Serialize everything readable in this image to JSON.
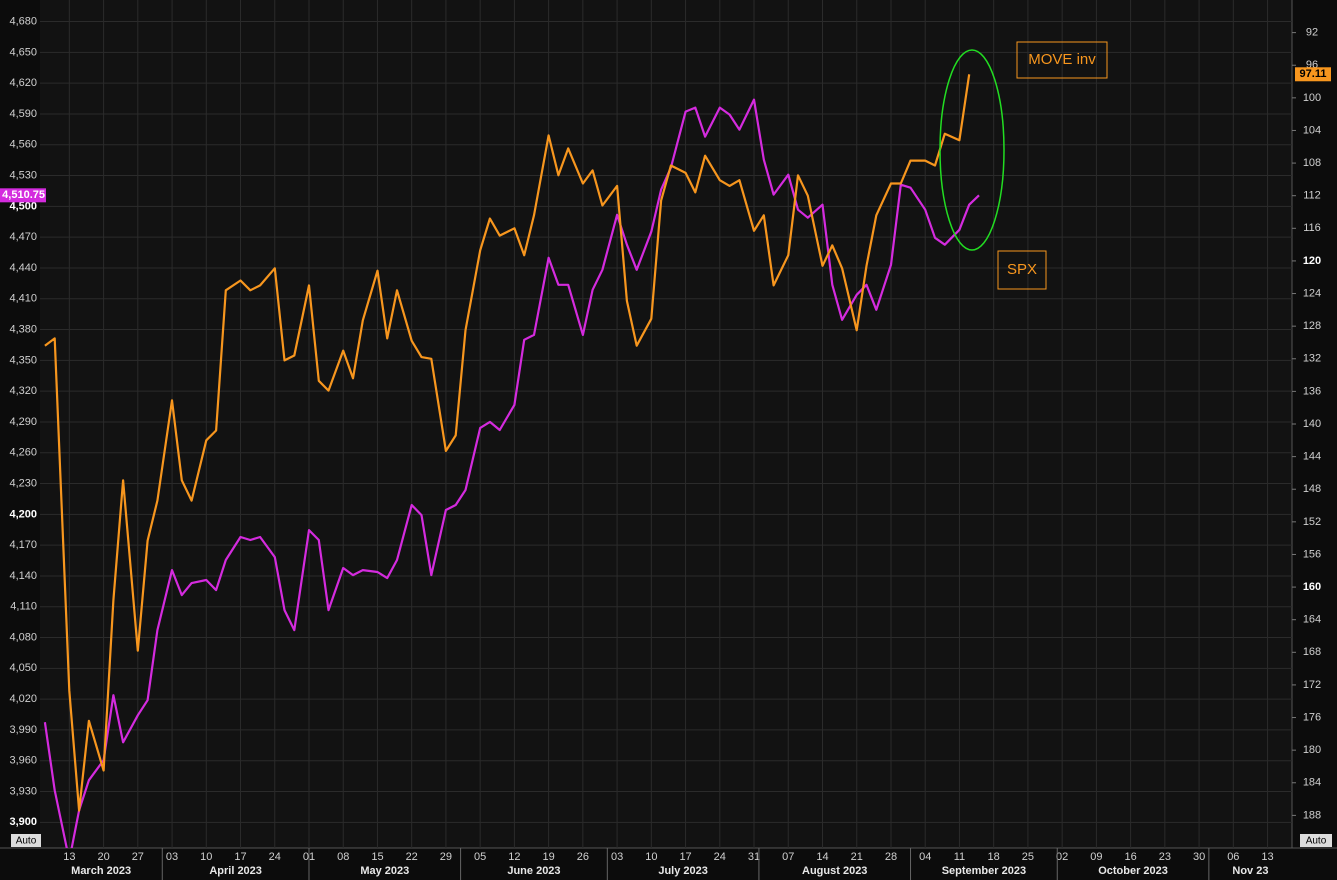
{
  "chart_data": {
    "type": "line",
    "x": [
      "2023-03-08",
      "2023-03-10",
      "2023-03-13",
      "2023-03-15",
      "2023-03-17",
      "2023-03-20",
      "2023-03-22",
      "2023-03-24",
      "2023-03-27",
      "2023-03-29",
      "2023-03-31",
      "2023-04-03",
      "2023-04-05",
      "2023-04-07",
      "2023-04-10",
      "2023-04-12",
      "2023-04-14",
      "2023-04-17",
      "2023-04-19",
      "2023-04-21",
      "2023-04-24",
      "2023-04-26",
      "2023-04-28",
      "2023-05-01",
      "2023-05-03",
      "2023-05-05",
      "2023-05-08",
      "2023-05-10",
      "2023-05-12",
      "2023-05-15",
      "2023-05-17",
      "2023-05-19",
      "2023-05-22",
      "2023-05-24",
      "2023-05-26",
      "2023-05-29",
      "2023-05-31",
      "2023-06-02",
      "2023-06-05",
      "2023-06-07",
      "2023-06-09",
      "2023-06-12",
      "2023-06-14",
      "2023-06-16",
      "2023-06-19",
      "2023-06-21",
      "2023-06-23",
      "2023-06-26",
      "2023-06-28",
      "2023-06-30",
      "2023-07-03",
      "2023-07-05",
      "2023-07-07",
      "2023-07-10",
      "2023-07-12",
      "2023-07-14",
      "2023-07-17",
      "2023-07-19",
      "2023-07-21",
      "2023-07-24",
      "2023-07-26",
      "2023-07-28",
      "2023-07-31",
      "2023-08-02",
      "2023-08-04",
      "2023-08-07",
      "2023-08-09",
      "2023-08-11",
      "2023-08-14",
      "2023-08-16",
      "2023-08-18",
      "2023-08-21",
      "2023-08-23",
      "2023-08-25",
      "2023-08-28",
      "2023-08-30",
      "2023-09-01",
      "2023-09-04",
      "2023-09-06",
      "2023-09-08",
      "2023-09-11",
      "2023-09-13",
      "2023-09-15"
    ],
    "series": [
      {
        "name": "SPX",
        "color": "#d42bde",
        "last_label": "4,510.75",
        "values": [
          3997.5,
          3931.2,
          3863,
          3911.7,
          3941,
          3960.5,
          4023.8,
          3978,
          4004.3,
          4019,
          4087.2,
          4145.7,
          4121.3,
          4133,
          4136,
          4126.2,
          4155.5,
          4177.9,
          4175,
          4177.9,
          4158.4,
          4106.7,
          4087.2,
          4184.7,
          4175,
          4106.7,
          4147.7,
          4140.8,
          4145.7,
          4143.8,
          4137.9,
          4155.5,
          4209.1,
          4199.3,
          4140.8,
          4204.2,
          4209.1,
          4223.7,
          4284.2,
          4290,
          4282.2,
          4306.6,
          4370,
          4374.8,
          4449.9,
          4423.6,
          4423.6,
          4374.8,
          4418.7,
          4438.2,
          4491.8,
          4462.6,
          4438.2,
          4475.3,
          4516.2,
          4537.7,
          4592.3,
          4596.2,
          4567.9,
          4596.2,
          4589.4,
          4574.7,
          4604,
          4545.5,
          4511.4,
          4530.8,
          4496.7,
          4488.9,
          4501.6,
          4423.6,
          4389.5,
          4413.8,
          4423.6,
          4399.2,
          4443.1,
          4521.1,
          4518.2,
          4496.7,
          4469.4,
          4462.6,
          4477.2,
          4501.6,
          4510.75
        ]
      },
      {
        "name": "MOVE inv",
        "color": "#f7961e",
        "axis": "y2",
        "values": [
          130.4,
          129.5,
          172.7,
          187.4,
          176.4,
          182.5,
          161.6,
          146.9,
          167.8,
          154.3,
          149.4,
          137.1,
          146.9,
          149.4,
          142,
          140.8,
          123.6,
          122.4,
          123.6,
          123,
          120.9,
          132.2,
          131.6,
          123,
          134.7,
          135.9,
          131,
          134.4,
          127.3,
          121.2,
          129.5,
          123.6,
          129.8,
          131.8,
          132,
          143.3,
          141.4,
          128.5,
          118.7,
          114.8,
          116.9,
          116,
          119.3,
          114.4,
          104.6,
          109.5,
          106.2,
          110.5,
          108.9,
          113.2,
          110.8,
          124.9,
          130.4,
          127.1,
          112.6,
          108.3,
          109.2,
          111.6,
          107.1,
          110.1,
          110.8,
          110.1,
          116.3,
          114.4,
          123,
          119.3,
          109.5,
          112,
          120.6,
          118.1,
          120.9,
          128.5,
          120.6,
          114.4,
          110.5,
          110.5,
          107.7,
          107.7,
          108.3,
          104.4,
          105.2,
          97.11,
          null
        ]
      }
    ],
    "legend_color": "#f7961e",
    "xlim": [
      "2023-03-07",
      "2023-11-18"
    ],
    "xticks": [
      {
        "value": "2023-03-13",
        "label": "13"
      },
      {
        "value": "2023-03-20",
        "label": "20"
      },
      {
        "value": "2023-03-27",
        "label": "27"
      },
      {
        "value": "2023-04-03",
        "label": "03"
      },
      {
        "value": "2023-04-10",
        "label": "10"
      },
      {
        "value": "2023-04-17",
        "label": "17"
      },
      {
        "value": "2023-04-24",
        "label": "24"
      },
      {
        "value": "2023-05-01",
        "label": "01"
      },
      {
        "value": "2023-05-08",
        "label": "08"
      },
      {
        "value": "2023-05-15",
        "label": "15"
      },
      {
        "value": "2023-05-22",
        "label": "22"
      },
      {
        "value": "2023-05-29",
        "label": "29"
      },
      {
        "value": "2023-06-05",
        "label": "05"
      },
      {
        "value": "2023-06-12",
        "label": "12"
      },
      {
        "value": "2023-06-19",
        "label": "19"
      },
      {
        "value": "2023-06-26",
        "label": "26"
      },
      {
        "value": "2023-07-03",
        "label": "03"
      },
      {
        "value": "2023-07-10",
        "label": "10"
      },
      {
        "value": "2023-07-17",
        "label": "17"
      },
      {
        "value": "2023-07-24",
        "label": "24"
      },
      {
        "value": "2023-07-31",
        "label": "31"
      },
      {
        "value": "2023-08-07",
        "label": "07"
      },
      {
        "value": "2023-08-14",
        "label": "14"
      },
      {
        "value": "2023-08-21",
        "label": "21"
      },
      {
        "value": "2023-08-28",
        "label": "28"
      },
      {
        "value": "2023-09-04",
        "label": "04"
      },
      {
        "value": "2023-09-11",
        "label": "11"
      },
      {
        "value": "2023-09-18",
        "label": "18"
      },
      {
        "value": "2023-09-25",
        "label": "25"
      },
      {
        "value": "2023-10-02",
        "label": "02"
      },
      {
        "value": "2023-10-09",
        "label": "09"
      },
      {
        "value": "2023-10-16",
        "label": "16"
      },
      {
        "value": "2023-10-23",
        "label": "23"
      },
      {
        "value": "2023-10-30",
        "label": "30"
      },
      {
        "value": "2023-11-06",
        "label": "06"
      },
      {
        "value": "2023-11-13",
        "label": "13"
      }
    ],
    "xmonths": [
      {
        "value": "2023-03",
        "label": "March 2023"
      },
      {
        "value": "2023-04",
        "label": "April 2023"
      },
      {
        "value": "2023-05",
        "label": "May 2023"
      },
      {
        "value": "2023-06",
        "label": "June 2023"
      },
      {
        "value": "2023-07",
        "label": "July 2023"
      },
      {
        "value": "2023-08",
        "label": "August 2023"
      },
      {
        "value": "2023-09",
        "label": "September 2023"
      },
      {
        "value": "2023-10",
        "label": "October 2023"
      },
      {
        "value": "2023-11",
        "label": "Nov 23"
      }
    ],
    "ylim": [
      3875,
      4701
    ],
    "yticks": [
      {
        "value": 3900,
        "label": "3,900"
      },
      {
        "value": 3930,
        "label": "3,930"
      },
      {
        "value": 3960,
        "label": "3,960"
      },
      {
        "value": 3990,
        "label": "3,990"
      },
      {
        "value": 4020,
        "label": "4,020"
      },
      {
        "value": 4050,
        "label": "4,050"
      },
      {
        "value": 4080,
        "label": "4,080"
      },
      {
        "value": 4110,
        "label": "4,110"
      },
      {
        "value": 4140,
        "label": "4,140"
      },
      {
        "value": 4170,
        "label": "4,170"
      },
      {
        "value": 4200,
        "label": "4,200"
      },
      {
        "value": 4230,
        "label": "4,230"
      },
      {
        "value": 4260,
        "label": "4,260"
      },
      {
        "value": 4290,
        "label": "4,290"
      },
      {
        "value": 4320,
        "label": "4,320"
      },
      {
        "value": 4350,
        "label": "4,350"
      },
      {
        "value": 4380,
        "label": "4,380"
      },
      {
        "value": 4410,
        "label": "4,410"
      },
      {
        "value": 4440,
        "label": "4,440"
      },
      {
        "value": 4470,
        "label": "4,470"
      },
      {
        "value": 4500,
        "label": "4,500"
      },
      {
        "value": 4530,
        "label": "4,530"
      },
      {
        "value": 4560,
        "label": "4,560"
      },
      {
        "value": 4590,
        "label": "4,590"
      },
      {
        "value": 4620,
        "label": "4,620"
      },
      {
        "value": 4650,
        "label": "4,650"
      },
      {
        "value": 4680,
        "label": "4,680"
      }
    ],
    "y2lim": [
      192,
      88
    ],
    "y2ticks": [
      92,
      96,
      100,
      104,
      108,
      112,
      116,
      120,
      124,
      128,
      132,
      136,
      140,
      144,
      148,
      152,
      156,
      160,
      164,
      168,
      172,
      176,
      180,
      184,
      188
    ],
    "grid": true,
    "axis_buttons": [
      "Auto",
      "Auto"
    ]
  }
}
